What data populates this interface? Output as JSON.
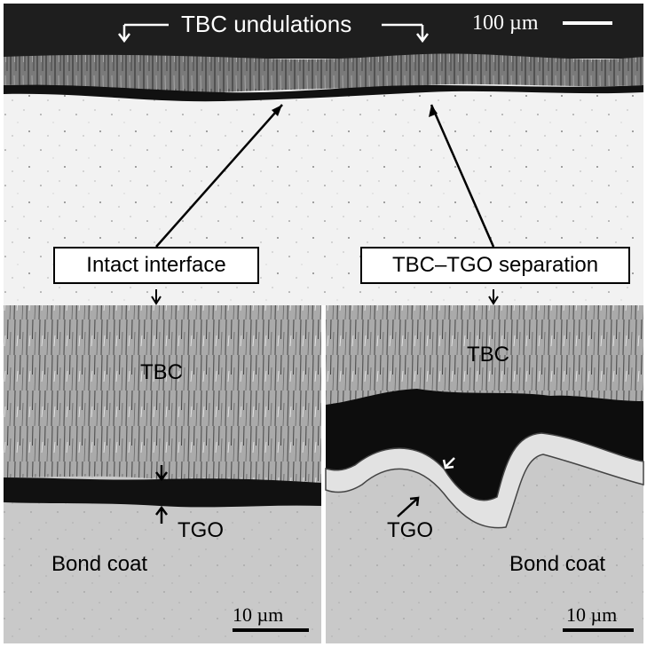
{
  "top_panel": {
    "title": "TBC undulations",
    "scale_bar": "100 µm"
  },
  "callouts": {
    "intact": "Intact interface",
    "separation": "TBC–TGO separation"
  },
  "left_panel": {
    "tbc": "TBC",
    "tgo": "TGO",
    "bond_coat": "Bond coat",
    "scale_bar": "10 µm"
  },
  "right_panel": {
    "tbc": "TBC",
    "tgo": "TGO",
    "bond_coat": "Bond coat",
    "scale_bar": "10 µm"
  },
  "colors": {
    "tbc_gray": "#a9a9a9",
    "bond_coat_gray": "#c9c9c9",
    "tgo_dark": "#111111",
    "substrate_light": "#f2f2f2",
    "outer_dark": "#1e1e1e"
  }
}
